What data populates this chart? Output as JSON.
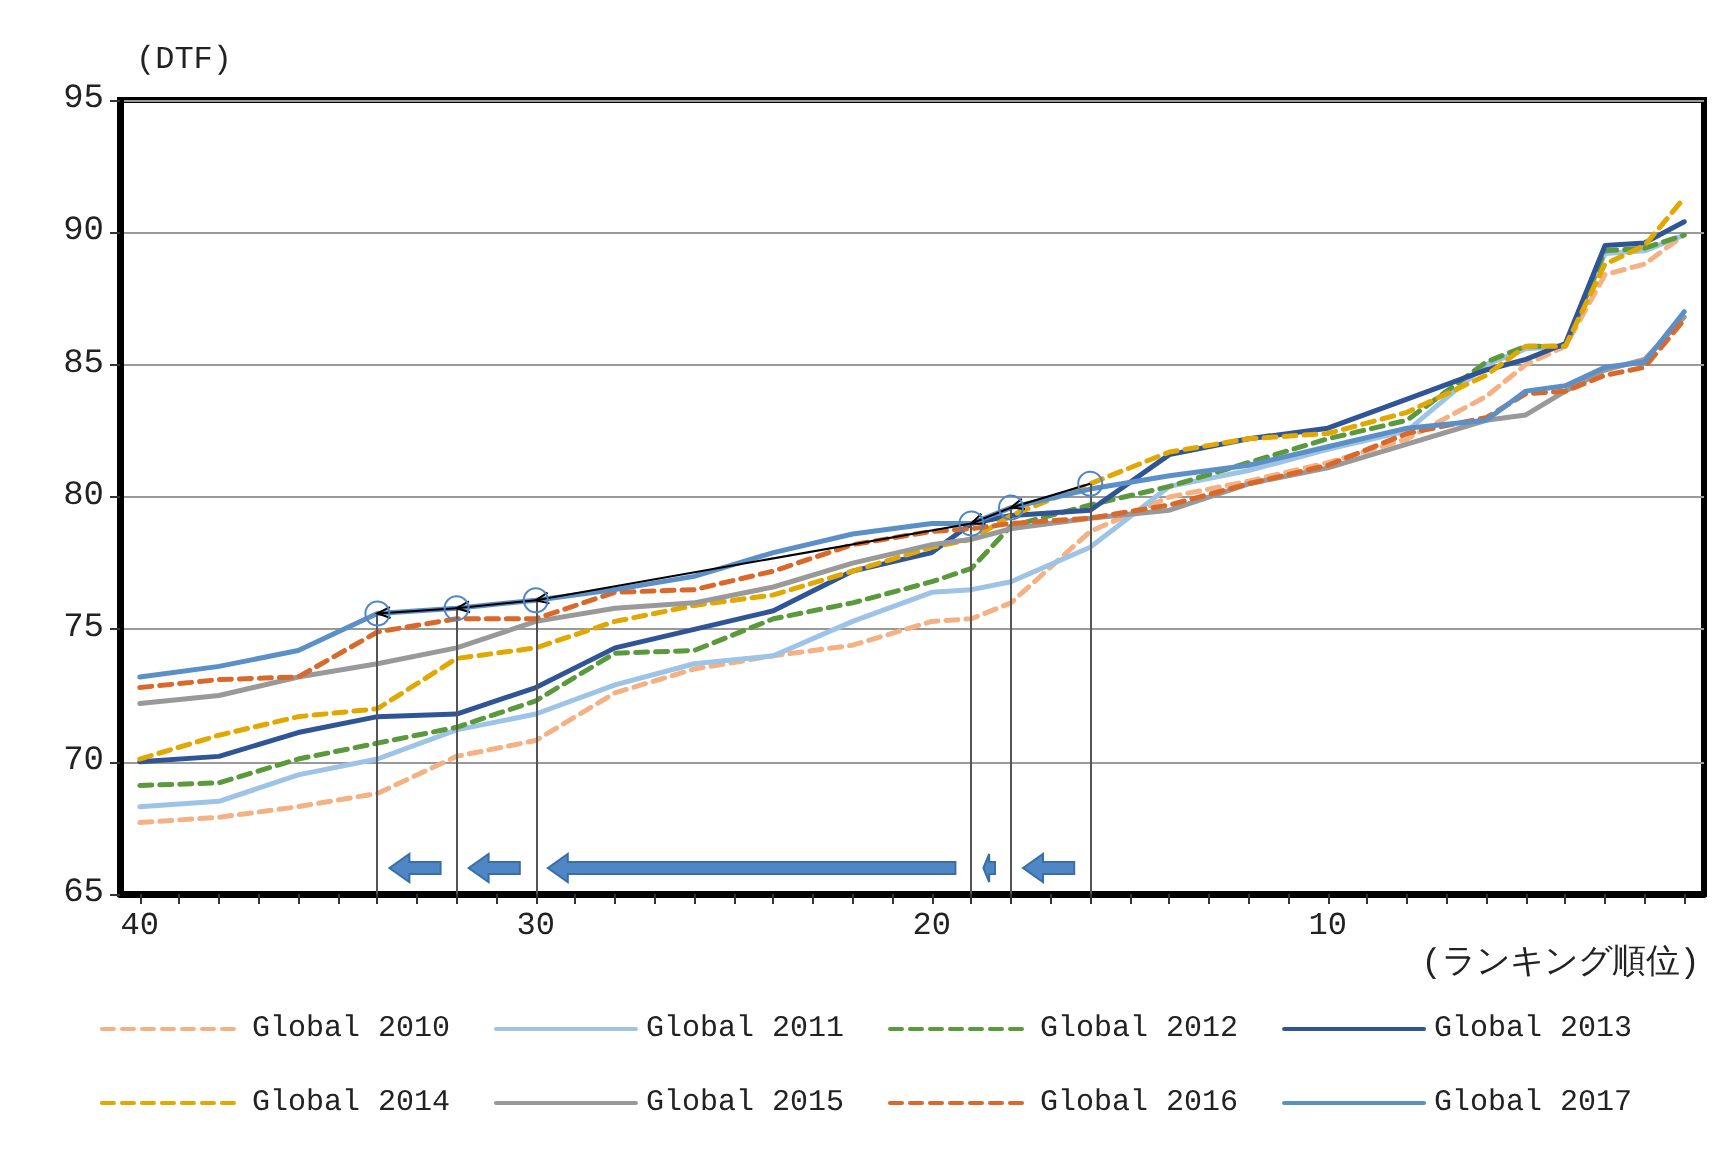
{
  "chart_data": {
    "type": "line",
    "ylabel": "(DTF)",
    "xlabel": "(ランキング順位)",
    "x": [
      40,
      38,
      36,
      34,
      32,
      30,
      28,
      26,
      24,
      22,
      20,
      19,
      18,
      16,
      14,
      12,
      10,
      8,
      6,
      5,
      4,
      3,
      2,
      1
    ],
    "xlim": [
      40.5,
      0.5
    ],
    "xticks": [
      40,
      {
        "value": 39,
        "label": null
      },
      {
        "value": 38,
        "label": null
      },
      {
        "value": 37,
        "label": null
      },
      {
        "value": 36,
        "label": null
      },
      {
        "value": 35,
        "label": null
      },
      {
        "value": 34,
        "label": null
      },
      {
        "value": 33,
        "label": null
      },
      {
        "value": 32,
        "label": null
      },
      {
        "value": 31,
        "label": null
      },
      30,
      {
        "value": 29,
        "label": null
      },
      {
        "value": 28,
        "label": null
      },
      {
        "value": 27,
        "label": null
      },
      {
        "value": 26,
        "label": null
      },
      {
        "value": 25,
        "label": null
      },
      {
        "value": 24,
        "label": null
      },
      {
        "value": 23,
        "label": null
      },
      {
        "value": 22,
        "label": null
      },
      {
        "value": 21,
        "label": null
      },
      20,
      {
        "value": 19,
        "label": null
      },
      {
        "value": 18,
        "label": null
      },
      {
        "value": 17,
        "label": null
      },
      {
        "value": 16,
        "label": null
      },
      {
        "value": 15,
        "label": null
      },
      {
        "value": 14,
        "label": null
      },
      {
        "value": 13,
        "label": null
      },
      {
        "value": 12,
        "label": null
      },
      {
        "value": 11,
        "label": null
      },
      10,
      {
        "value": 9,
        "label": null
      },
      {
        "value": 8,
        "label": null
      },
      {
        "value": 7,
        "label": null
      },
      {
        "value": 6,
        "label": null
      },
      {
        "value": 5,
        "label": null
      },
      {
        "value": 4,
        "label": null
      },
      {
        "value": 3,
        "label": null
      },
      {
        "value": 2,
        "label": null
      },
      {
        "value": 1,
        "label": null
      }
    ],
    "ylim": [
      65,
      95
    ],
    "yticks": [
      65,
      70,
      75,
      80,
      85,
      90,
      95
    ],
    "grid": "y",
    "legend": "bottom",
    "marker": "none",
    "series": [
      {
        "name": "Global 2010",
        "color": "#f4b183",
        "line_style": "dashed",
        "values": [
          67.7,
          67.9,
          68.3,
          68.8,
          70.2,
          70.8,
          72.6,
          73.5,
          74.0,
          74.4,
          75.3,
          75.4,
          76.0,
          78.7,
          80.0,
          80.6,
          81.3,
          82.2,
          83.8,
          85.0,
          85.7,
          88.4,
          88.8,
          89.9
        ]
      },
      {
        "name": "Global 2011",
        "color": "#9dc3e6",
        "line_style": "solid",
        "values": [
          68.3,
          68.5,
          69.5,
          70.1,
          71.2,
          71.8,
          72.9,
          73.7,
          74.0,
          75.3,
          76.4,
          76.5,
          76.8,
          78.1,
          80.4,
          81.0,
          81.8,
          82.5,
          85.0,
          85.6,
          85.7,
          89.2,
          89.3,
          89.9
        ]
      },
      {
        "name": "Global 2012",
        "color": "#5b9a3c",
        "line_style": "dashed",
        "values": [
          69.1,
          69.2,
          70.1,
          70.7,
          71.3,
          72.3,
          74.1,
          74.2,
          75.4,
          76.0,
          76.8,
          77.3,
          78.9,
          79.7,
          80.4,
          81.3,
          82.2,
          82.9,
          85.1,
          85.7,
          85.7,
          89.3,
          89.4,
          89.9
        ]
      },
      {
        "name": "Global 2013",
        "color": "#2f5597",
        "line_style": "solid",
        "values": [
          70.0,
          70.2,
          71.1,
          71.7,
          71.8,
          72.8,
          74.3,
          75.0,
          75.7,
          77.2,
          77.9,
          79.0,
          79.3,
          79.5,
          81.6,
          82.2,
          82.6,
          83.7,
          84.8,
          85.2,
          85.8,
          89.5,
          89.6,
          90.4
        ]
      },
      {
        "name": "Global 2014",
        "color": "#e0a800",
        "line_style": "dashed",
        "values": [
          70.1,
          71.0,
          71.7,
          72.0,
          73.9,
          74.3,
          75.3,
          75.9,
          76.3,
          77.2,
          78.1,
          78.4,
          79.3,
          80.5,
          81.7,
          82.2,
          82.4,
          83.2,
          84.6,
          85.7,
          85.7,
          88.8,
          89.5,
          91.3
        ]
      },
      {
        "name": "Global 2015",
        "color": "#999999",
        "line_style": "solid",
        "values": [
          72.2,
          72.5,
          73.2,
          73.7,
          74.3,
          75.3,
          75.8,
          76.0,
          76.6,
          77.5,
          78.2,
          78.4,
          78.8,
          79.2,
          79.5,
          80.5,
          81.1,
          82.0,
          82.9,
          83.1,
          84.0,
          84.8,
          85.2,
          86.8
        ]
      },
      {
        "name": "Global 2016",
        "color": "#d9692a",
        "line_style": "dashed",
        "values": [
          72.8,
          73.1,
          73.2,
          74.9,
          75.4,
          75.4,
          76.4,
          76.5,
          77.2,
          78.2,
          78.7,
          78.8,
          79.0,
          79.2,
          79.7,
          80.5,
          81.2,
          82.4,
          83.0,
          83.9,
          84.0,
          84.6,
          84.9,
          86.7
        ]
      },
      {
        "name": "Global 2017",
        "color": "#5b8fc8",
        "line_style": "solid",
        "values": [
          73.2,
          73.6,
          74.2,
          75.6,
          75.8,
          76.1,
          76.5,
          77.0,
          77.9,
          78.6,
          79.0,
          79.0,
          79.6,
          80.3,
          80.8,
          81.2,
          81.9,
          82.6,
          82.9,
          84.0,
          84.2,
          84.9,
          85.1,
          87.0
        ]
      }
    ],
    "ref_lines": [
      {
        "axis": "x",
        "value": 34,
        "label": null,
        "color": "#555555"
      },
      {
        "axis": "x",
        "value": 32,
        "label": null,
        "color": "#555555"
      },
      {
        "axis": "x",
        "value": 30,
        "label": null,
        "color": "#555555"
      },
      {
        "axis": "x",
        "value": 19,
        "label": null,
        "color": "#555555"
      },
      {
        "axis": "x",
        "value": 18,
        "label": null,
        "color": "#555555"
      },
      {
        "axis": "x",
        "value": 16,
        "label": null,
        "color": "#555555"
      }
    ]
  }
}
